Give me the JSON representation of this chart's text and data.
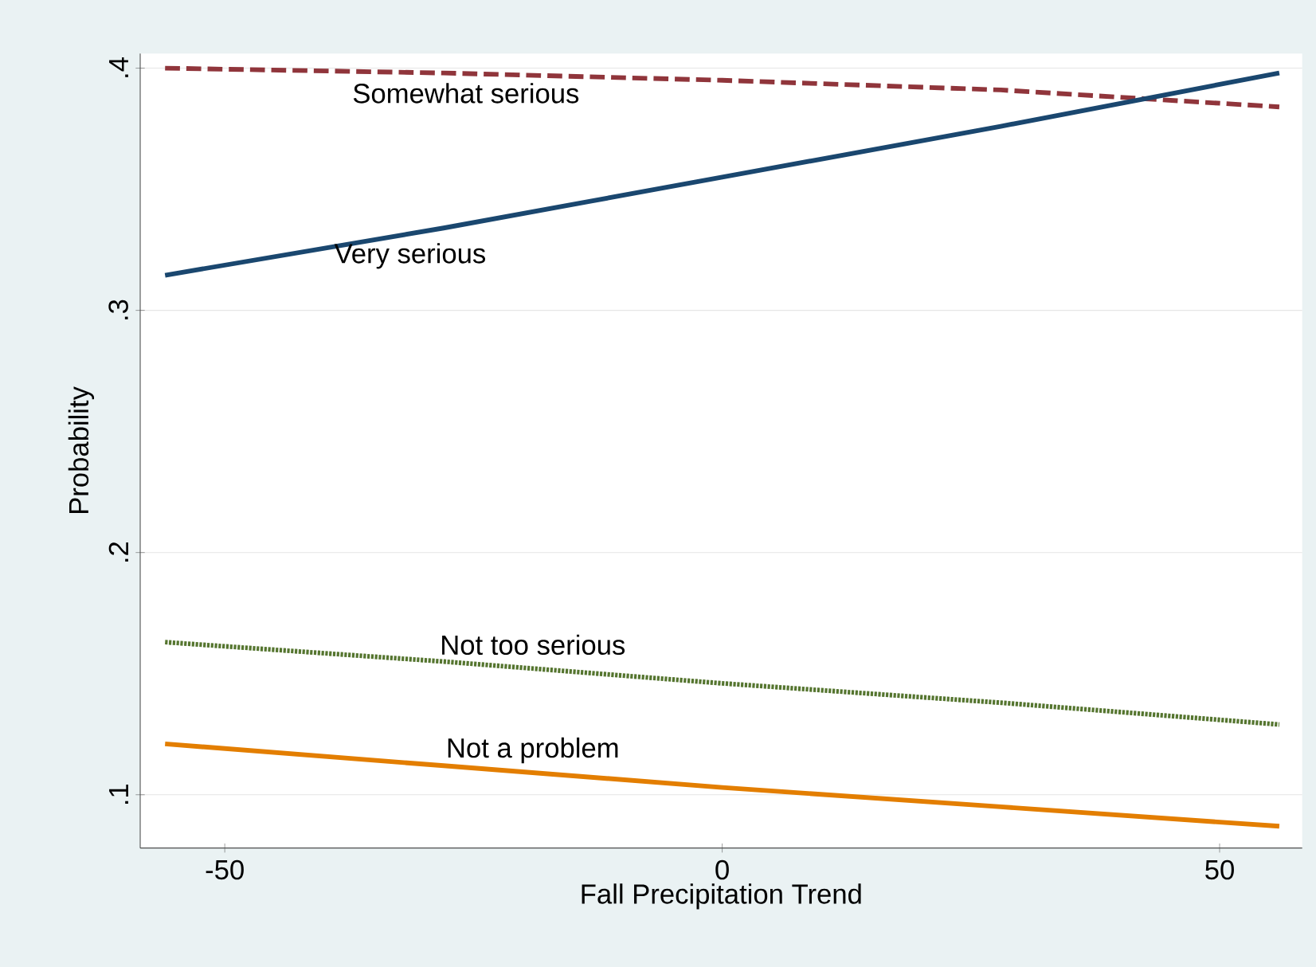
{
  "chart_data": {
    "type": "line",
    "xlabel": "Fall Precipitation Trend",
    "ylabel": "Probability",
    "x": [
      -56,
      -28,
      0,
      28,
      56
    ],
    "series": [
      {
        "name": "Somewhat serious",
        "color": "#90353b",
        "line_style": "dashed",
        "values": [
          0.4,
          0.398,
          0.395,
          0.391,
          0.384
        ]
      },
      {
        "name": "Very serious",
        "color": "#1a476f",
        "line_style": "solid",
        "values": [
          0.3145,
          0.334,
          0.355,
          0.376,
          0.398
        ]
      },
      {
        "name": "Not too serious",
        "color": "#55752f",
        "line_style": "dotted",
        "values": [
          0.163,
          0.155,
          0.146,
          0.138,
          0.129
        ]
      },
      {
        "name": "Not a problem",
        "color": "#e37e00",
        "line_style": "solid",
        "values": [
          0.121,
          0.112,
          0.103,
          0.095,
          0.087
        ]
      }
    ],
    "xlim": [
      -58.5,
      58.3
    ],
    "ylim": [
      0.078,
      0.406
    ],
    "xticks": [
      -50,
      0,
      50
    ],
    "yticks": [
      {
        "value": 0.1,
        "label": ".1"
      },
      {
        "value": 0.2,
        "label": ".2"
      },
      {
        "value": 0.3,
        "label": ".3"
      },
      {
        "value": 0.4,
        "label": ".4"
      }
    ],
    "grid": "y",
    "legend": false,
    "marker": "none"
  }
}
